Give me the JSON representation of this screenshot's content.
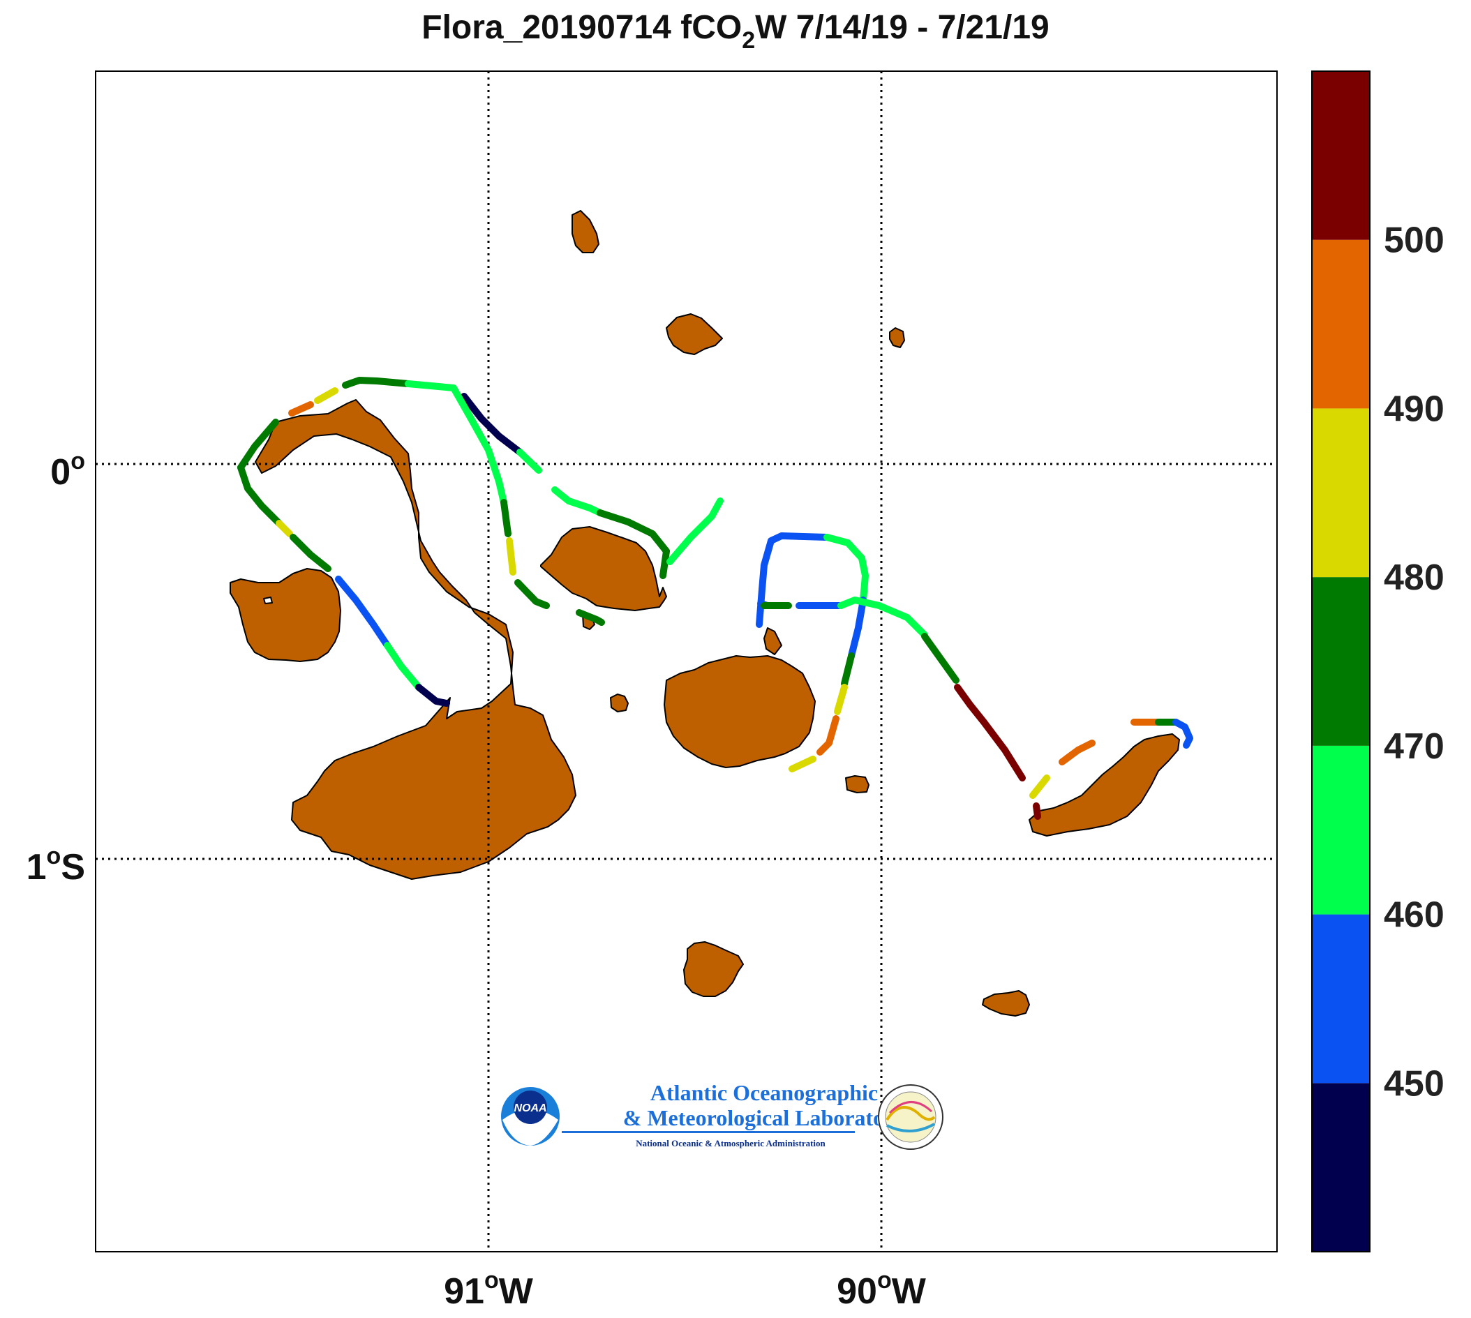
{
  "title": {
    "prefix": "Flora_20190714 fCO",
    "subscript": "2",
    "suffix": "W 7/14/19 - 7/21/19"
  },
  "axes": {
    "x_ticks": [
      {
        "lon": -91,
        "deg": "91",
        "hemi": "W"
      },
      {
        "lon": -90,
        "deg": "90",
        "hemi": "W"
      }
    ],
    "y_ticks": [
      {
        "lat": 0,
        "deg": "0",
        "hemi": ""
      },
      {
        "lat": -1,
        "deg": "1",
        "hemi": "S"
      }
    ],
    "grid": "dotted"
  },
  "colorbar": {
    "bands": [
      {
        "from": 440,
        "to": 450,
        "color": "#00004f"
      },
      {
        "from": 450,
        "to": 460,
        "color": "#0a52f2"
      },
      {
        "from": 460,
        "to": 470,
        "color": "#00ff4c"
      },
      {
        "from": 470,
        "to": 480,
        "color": "#007a00"
      },
      {
        "from": 480,
        "to": 490,
        "color": "#d9d900"
      },
      {
        "from": 490,
        "to": 500,
        "color": "#e36500"
      },
      {
        "from": 500,
        "to": 510,
        "color": "#7a0000"
      }
    ],
    "labels": [
      "450",
      "460",
      "470",
      "480",
      "490",
      "500"
    ]
  },
  "colors": {
    "land": "#bf6000",
    "coast": "#000000"
  },
  "logo": {
    "line1": "Atlantic Oceanographic",
    "line2": "& Meteorological Laboratory",
    "line3": "National Oceanic & Atmospheric Administration",
    "badge": "NOAA"
  }
}
